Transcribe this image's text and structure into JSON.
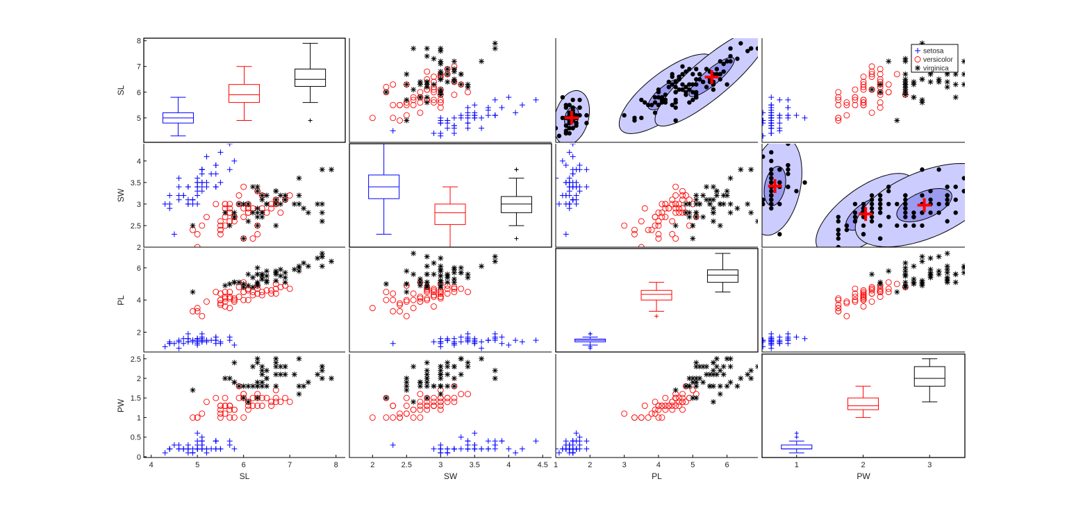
{
  "chart_data": {
    "type": "scatter",
    "variables": [
      "SL",
      "SW",
      "PL",
      "PW"
    ],
    "diagonal": "boxplot",
    "grid": false,
    "legend": {
      "placement": "top-right",
      "entries": [
        "setosa",
        "versicolor",
        "virginica"
      ]
    },
    "groups": [
      {
        "name": "setosa",
        "color": "#0000ff",
        "marker": "plus"
      },
      {
        "name": "versicolor",
        "color": "#ff0000",
        "marker": "circle"
      },
      {
        "name": "virginica",
        "color": "#000000",
        "marker": "asterisk"
      }
    ],
    "axis_ranges": {
      "SL": [
        3.84,
        8.2
      ],
      "SW": [
        1.66,
        4.63
      ],
      "PL": [
        1.0,
        6.9
      ],
      "PW": [
        0.09,
        2.51
      ]
    },
    "row_ranges": {
      "SL": [
        4.05,
        8.1
      ],
      "SW": [
        2.0,
        4.4
      ],
      "PL": [
        0.77,
        7.2
      ],
      "PW": [
        -0.02,
        2.62
      ]
    },
    "boxplot_x_range": [
      0.48,
      3.53
    ],
    "y_ticks": {
      "SL": [
        5,
        6,
        7,
        8
      ],
      "SW": [
        2,
        2.5,
        3,
        3.5,
        4
      ],
      "PL": [
        2,
        4,
        6
      ],
      "PW": [
        0,
        0.5,
        1,
        1.5,
        2,
        2.5
      ]
    },
    "x_ticks": {
      "SL": [
        4,
        5,
        6,
        7,
        8
      ],
      "SW": [
        2,
        2.5,
        3,
        3.5,
        4,
        4.5
      ],
      "PL": [
        1,
        2,
        3,
        4,
        5,
        6
      ],
      "PW": [
        1,
        2,
        3
      ]
    },
    "overlay_panels": [
      {
        "row": "SL",
        "col": "PL",
        "crosses": [
          "setosa",
          "virginica"
        ]
      },
      {
        "row": "SW",
        "col": "PW",
        "crosses": [
          "setosa",
          "versicolor",
          "virginica"
        ]
      }
    ],
    "overlay_colors": {
      "outer": "#ccccff",
      "inner": "#9b9bf0",
      "dots": "#000000",
      "cross": "#ff0000"
    },
    "data": {
      "setosa": [
        [
          5.1,
          3.5,
          1.4,
          0.2
        ],
        [
          4.9,
          3.0,
          1.4,
          0.2
        ],
        [
          4.7,
          3.2,
          1.3,
          0.2
        ],
        [
          4.6,
          3.1,
          1.5,
          0.2
        ],
        [
          5.0,
          3.6,
          1.4,
          0.2
        ],
        [
          5.4,
          3.9,
          1.7,
          0.4
        ],
        [
          4.6,
          3.4,
          1.4,
          0.3
        ],
        [
          5.0,
          3.4,
          1.5,
          0.2
        ],
        [
          4.4,
          2.9,
          1.4,
          0.2
        ],
        [
          4.9,
          3.1,
          1.5,
          0.1
        ],
        [
          5.4,
          3.7,
          1.5,
          0.2
        ],
        [
          4.8,
          3.4,
          1.6,
          0.2
        ],
        [
          4.8,
          3.0,
          1.4,
          0.1
        ],
        [
          4.3,
          3.0,
          1.1,
          0.1
        ],
        [
          5.8,
          4.0,
          1.2,
          0.2
        ],
        [
          5.7,
          4.4,
          1.5,
          0.4
        ],
        [
          5.4,
          3.9,
          1.3,
          0.4
        ],
        [
          5.1,
          3.5,
          1.4,
          0.3
        ],
        [
          5.7,
          3.8,
          1.7,
          0.3
        ],
        [
          5.1,
          3.8,
          1.5,
          0.3
        ],
        [
          5.4,
          3.4,
          1.7,
          0.2
        ],
        [
          5.1,
          3.7,
          1.5,
          0.4
        ],
        [
          4.6,
          3.6,
          1.0,
          0.2
        ],
        [
          5.1,
          3.3,
          1.7,
          0.5
        ],
        [
          4.8,
          3.4,
          1.9,
          0.2
        ],
        [
          5.0,
          3.0,
          1.6,
          0.2
        ],
        [
          5.0,
          3.4,
          1.6,
          0.4
        ],
        [
          5.2,
          3.5,
          1.5,
          0.2
        ],
        [
          5.2,
          3.4,
          1.4,
          0.2
        ],
        [
          4.7,
          3.2,
          1.6,
          0.2
        ],
        [
          4.8,
          3.1,
          1.6,
          0.2
        ],
        [
          5.4,
          3.4,
          1.5,
          0.4
        ],
        [
          5.2,
          4.1,
          1.5,
          0.1
        ],
        [
          5.5,
          4.2,
          1.4,
          0.2
        ],
        [
          4.9,
          3.1,
          1.5,
          0.1
        ],
        [
          5.0,
          3.2,
          1.2,
          0.2
        ],
        [
          5.5,
          3.5,
          1.3,
          0.2
        ],
        [
          4.9,
          3.1,
          1.5,
          0.1
        ],
        [
          4.4,
          3.0,
          1.3,
          0.2
        ],
        [
          5.1,
          3.4,
          1.5,
          0.2
        ],
        [
          5.0,
          3.5,
          1.3,
          0.3
        ],
        [
          4.5,
          2.3,
          1.3,
          0.3
        ],
        [
          4.4,
          3.2,
          1.3,
          0.2
        ],
        [
          5.0,
          3.5,
          1.6,
          0.6
        ],
        [
          5.1,
          3.8,
          1.9,
          0.4
        ],
        [
          4.8,
          3.0,
          1.4,
          0.3
        ],
        [
          5.1,
          3.8,
          1.6,
          0.2
        ],
        [
          4.6,
          3.2,
          1.4,
          0.2
        ],
        [
          5.3,
          3.7,
          1.5,
          0.2
        ],
        [
          5.0,
          3.3,
          1.4,
          0.2
        ]
      ],
      "versicolor": [
        [
          7.0,
          3.2,
          4.7,
          1.4
        ],
        [
          6.4,
          3.2,
          4.5,
          1.5
        ],
        [
          6.9,
          3.1,
          4.9,
          1.5
        ],
        [
          5.5,
          2.3,
          4.0,
          1.3
        ],
        [
          6.5,
          2.8,
          4.6,
          1.5
        ],
        [
          5.7,
          2.8,
          4.5,
          1.3
        ],
        [
          6.3,
          3.3,
          4.7,
          1.6
        ],
        [
          4.9,
          2.4,
          3.3,
          1.0
        ],
        [
          6.6,
          2.9,
          4.6,
          1.3
        ],
        [
          5.2,
          2.7,
          3.9,
          1.4
        ],
        [
          5.0,
          2.0,
          3.5,
          1.0
        ],
        [
          5.9,
          3.0,
          4.2,
          1.5
        ],
        [
          6.0,
          2.2,
          4.0,
          1.0
        ],
        [
          6.1,
          2.9,
          4.7,
          1.4
        ],
        [
          5.6,
          2.9,
          3.6,
          1.3
        ],
        [
          6.7,
          3.1,
          4.4,
          1.4
        ],
        [
          5.6,
          3.0,
          4.5,
          1.5
        ],
        [
          5.8,
          2.7,
          4.1,
          1.0
        ],
        [
          6.2,
          2.2,
          4.5,
          1.5
        ],
        [
          5.6,
          2.5,
          3.9,
          1.1
        ],
        [
          5.9,
          3.2,
          4.8,
          1.8
        ],
        [
          6.1,
          2.8,
          4.0,
          1.3
        ],
        [
          6.3,
          2.5,
          4.9,
          1.5
        ],
        [
          6.1,
          2.8,
          4.7,
          1.2
        ],
        [
          6.4,
          2.9,
          4.3,
          1.3
        ],
        [
          6.6,
          3.0,
          4.4,
          1.4
        ],
        [
          6.8,
          2.8,
          4.8,
          1.4
        ],
        [
          6.7,
          3.0,
          5.0,
          1.7
        ],
        [
          6.0,
          2.9,
          4.5,
          1.5
        ],
        [
          5.7,
          2.6,
          3.5,
          1.0
        ],
        [
          5.5,
          2.4,
          3.8,
          1.1
        ],
        [
          5.5,
          2.4,
          3.7,
          1.0
        ],
        [
          5.8,
          2.7,
          3.9,
          1.2
        ],
        [
          6.0,
          2.7,
          5.1,
          1.6
        ],
        [
          5.4,
          3.0,
          4.5,
          1.5
        ],
        [
          6.0,
          3.4,
          4.5,
          1.6
        ],
        [
          6.7,
          3.1,
          4.7,
          1.5
        ],
        [
          6.3,
          2.3,
          4.4,
          1.3
        ],
        [
          5.6,
          3.0,
          4.1,
          1.3
        ],
        [
          5.5,
          2.5,
          4.0,
          1.3
        ],
        [
          5.5,
          2.6,
          4.4,
          1.2
        ],
        [
          6.1,
          3.0,
          4.6,
          1.4
        ],
        [
          5.8,
          2.6,
          4.0,
          1.2
        ],
        [
          5.0,
          2.3,
          3.3,
          1.0
        ],
        [
          5.6,
          2.7,
          4.2,
          1.3
        ],
        [
          5.7,
          3.0,
          4.2,
          1.2
        ],
        [
          5.7,
          2.9,
          4.2,
          1.3
        ],
        [
          6.2,
          2.9,
          4.3,
          1.3
        ],
        [
          5.1,
          2.5,
          3.0,
          1.1
        ],
        [
          5.7,
          2.8,
          4.1,
          1.3
        ]
      ],
      "virginica": [
        [
          6.3,
          3.3,
          6.0,
          2.5
        ],
        [
          5.8,
          2.7,
          5.1,
          1.9
        ],
        [
          7.1,
          3.0,
          5.9,
          2.1
        ],
        [
          6.3,
          2.9,
          5.6,
          1.8
        ],
        [
          6.5,
          3.0,
          5.8,
          2.2
        ],
        [
          7.6,
          3.0,
          6.6,
          2.1
        ],
        [
          4.9,
          2.5,
          4.5,
          1.7
        ],
        [
          7.3,
          2.9,
          6.3,
          1.8
        ],
        [
          6.7,
          2.5,
          5.8,
          1.8
        ],
        [
          7.2,
          3.6,
          6.1,
          2.5
        ],
        [
          6.5,
          3.2,
          5.1,
          2.0
        ],
        [
          6.4,
          2.7,
          5.3,
          1.9
        ],
        [
          6.8,
          3.0,
          5.5,
          2.1
        ],
        [
          5.7,
          2.5,
          5.0,
          2.0
        ],
        [
          5.8,
          2.8,
          5.1,
          2.4
        ],
        [
          6.4,
          3.2,
          5.3,
          2.3
        ],
        [
          6.5,
          3.0,
          5.5,
          1.8
        ],
        [
          7.7,
          3.8,
          6.7,
          2.2
        ],
        [
          7.7,
          2.6,
          6.9,
          2.3
        ],
        [
          6.0,
          2.2,
          5.0,
          1.5
        ],
        [
          6.9,
          3.2,
          5.7,
          2.3
        ],
        [
          5.6,
          2.8,
          4.9,
          2.0
        ],
        [
          7.7,
          2.8,
          6.7,
          2.0
        ],
        [
          6.3,
          2.7,
          4.9,
          1.8
        ],
        [
          6.7,
          3.3,
          5.7,
          2.1
        ],
        [
          7.2,
          3.2,
          6.0,
          1.8
        ],
        [
          6.2,
          2.8,
          4.8,
          1.8
        ],
        [
          6.1,
          3.0,
          4.9,
          1.8
        ],
        [
          6.4,
          2.8,
          5.6,
          2.1
        ],
        [
          7.2,
          3.0,
          5.8,
          1.6
        ],
        [
          7.4,
          2.8,
          6.1,
          1.9
        ],
        [
          7.9,
          3.8,
          6.4,
          2.0
        ],
        [
          6.4,
          2.8,
          5.6,
          2.2
        ],
        [
          6.3,
          2.8,
          5.1,
          1.5
        ],
        [
          6.1,
          2.6,
          5.6,
          1.4
        ],
        [
          7.7,
          3.0,
          6.1,
          2.3
        ],
        [
          6.3,
          3.4,
          5.6,
          2.4
        ],
        [
          6.4,
          3.1,
          5.5,
          1.8
        ],
        [
          6.0,
          3.0,
          4.8,
          1.8
        ],
        [
          6.9,
          3.1,
          5.4,
          2.1
        ],
        [
          6.7,
          3.1,
          5.6,
          2.4
        ],
        [
          6.9,
          3.1,
          5.1,
          2.3
        ],
        [
          5.8,
          2.7,
          5.1,
          1.9
        ],
        [
          6.8,
          3.2,
          5.9,
          2.3
        ],
        [
          6.7,
          3.3,
          5.7,
          2.5
        ],
        [
          6.7,
          3.0,
          5.2,
          2.3
        ],
        [
          6.3,
          2.5,
          5.0,
          1.9
        ],
        [
          6.5,
          3.0,
          5.2,
          2.0
        ],
        [
          6.2,
          3.4,
          5.4,
          2.3
        ],
        [
          5.9,
          3.0,
          5.1,
          1.8
        ]
      ]
    }
  }
}
